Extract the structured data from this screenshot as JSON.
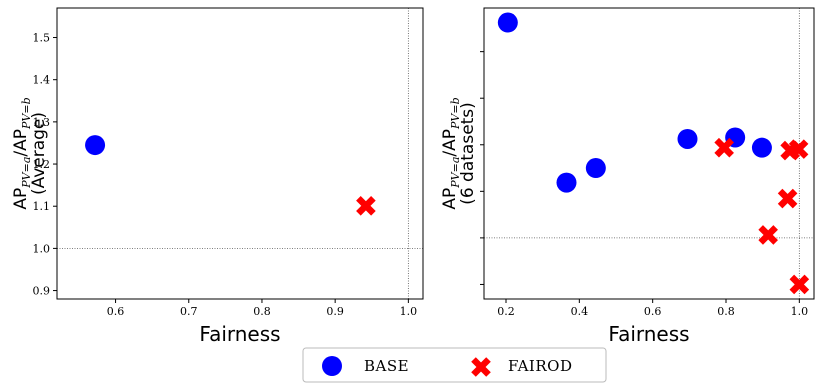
{
  "chart_data": [
    {
      "type": "scatter",
      "xlabel": "Fairness",
      "ylabel": {
        "main": "AP",
        "sub_a": "PV=a",
        "slash": "/",
        "main2": "AP",
        "sub_b": "PV=b",
        "line2": "(Average)"
      },
      "xlim": [
        0.52,
        1.02
      ],
      "ylim": [
        0.88,
        1.57
      ],
      "xticks": [
        0.6,
        0.7,
        0.8,
        0.9,
        1.0
      ],
      "xtick_labels": [
        "0.6",
        "0.7",
        "0.8",
        "0.9",
        "1.0"
      ],
      "yticks": [
        0.9,
        1.0,
        1.1,
        1.2,
        1.3,
        1.4,
        1.5
      ],
      "ytick_labels": [
        "0.9",
        "1.0",
        "1.1",
        "1.2",
        "1.3",
        "1.4",
        "1.5"
      ],
      "reference_lines": {
        "x": 1.0,
        "y": 1.0
      },
      "series": [
        {
          "name": "BASE",
          "marker": "circle",
          "color": "#0000ff",
          "points": [
            [
              0.572,
              1.245
            ]
          ]
        },
        {
          "name": "FairOD",
          "marker": "x",
          "color": "#ff0000",
          "points": [
            [
              0.942,
              1.101
            ]
          ]
        }
      ]
    },
    {
      "type": "scatter",
      "xlabel": "Fairness",
      "ylabel": {
        "main": "AP",
        "sub_a": "PV=a",
        "slash": "/",
        "main2": "AP",
        "sub_b": "PV=b",
        "line2": "(6 datasets)"
      },
      "xlim": [
        0.14,
        1.04
      ],
      "ylim": [
        0.0,
        1.0
      ],
      "xticks": [
        0.2,
        0.4,
        0.6,
        0.8,
        1.0
      ],
      "xtick_labels": [
        "0.2",
        "0.4",
        "0.6",
        "0.8",
        "1.0"
      ],
      "yticks": [
        0.05,
        0.21,
        0.37,
        0.53,
        0.69,
        0.85
      ],
      "reference_lines": {
        "x": 1.0,
        "y": 0.21
      },
      "series": [
        {
          "name": "BASE",
          "marker": "circle",
          "color": "#0000ff",
          "points": [
            [
              0.205,
              0.95
            ],
            [
              0.365,
              0.4
            ],
            [
              0.445,
              0.45
            ],
            [
              0.695,
              0.55
            ],
            [
              0.825,
              0.555
            ],
            [
              0.898,
              0.52
            ]
          ]
        },
        {
          "name": "FairOD",
          "marker": "x",
          "color": "#ff0000",
          "points": [
            [
              0.795,
              0.52
            ],
            [
              0.975,
              0.51
            ],
            [
              0.998,
              0.515
            ],
            [
              0.968,
              0.345
            ],
            [
              0.915,
              0.22
            ],
            [
              1.0,
              0.05
            ]
          ]
        }
      ]
    }
  ],
  "legend": {
    "placement": "bottom-center",
    "items": [
      {
        "label": "BASE",
        "marker": "circle",
        "color": "#0000ff"
      },
      {
        "label": "FAIROD",
        "marker": "x",
        "color": "#ff0000"
      }
    ]
  }
}
